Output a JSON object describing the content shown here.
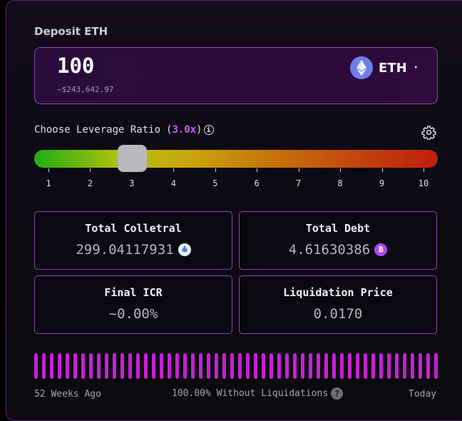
{
  "deposit": {
    "title": "Deposit ETH",
    "amount": "100",
    "usd_value": "~$243,642.97",
    "token": "ETH",
    "token_icon": "ethereum-icon",
    "caret": "▾"
  },
  "leverage": {
    "label": "Choose Leverage Ratio",
    "value": "3.0x",
    "current": 3.0,
    "min": 1,
    "max": 10,
    "ticks": [
      "1",
      "2",
      "3",
      "4",
      "5",
      "6",
      "7",
      "8",
      "9",
      "10"
    ]
  },
  "stats": {
    "total_collateral": {
      "title": "Total Colletral",
      "value": "299.04117931",
      "icon": "steth-icon"
    },
    "total_debt": {
      "title": "Total Debt",
      "value": "4.61630386",
      "icon": "bitcoin-icon"
    },
    "final_icr": {
      "title": "Final ICR",
      "value": "~0.00%"
    },
    "liquidation_price": {
      "title": "Liquidation Price",
      "value": "0.0170"
    }
  },
  "history": {
    "start_label": "52 Weeks Ago",
    "summary": "100.00% Without Liquidations",
    "end_label": "Today",
    "weeks": 52,
    "bar_color": "#c81fd6"
  },
  "colors": {
    "accent": "#c75bff",
    "border": "#8a48b2",
    "slider_start": "#1fae14",
    "slider_end": "#c11d0c"
  }
}
